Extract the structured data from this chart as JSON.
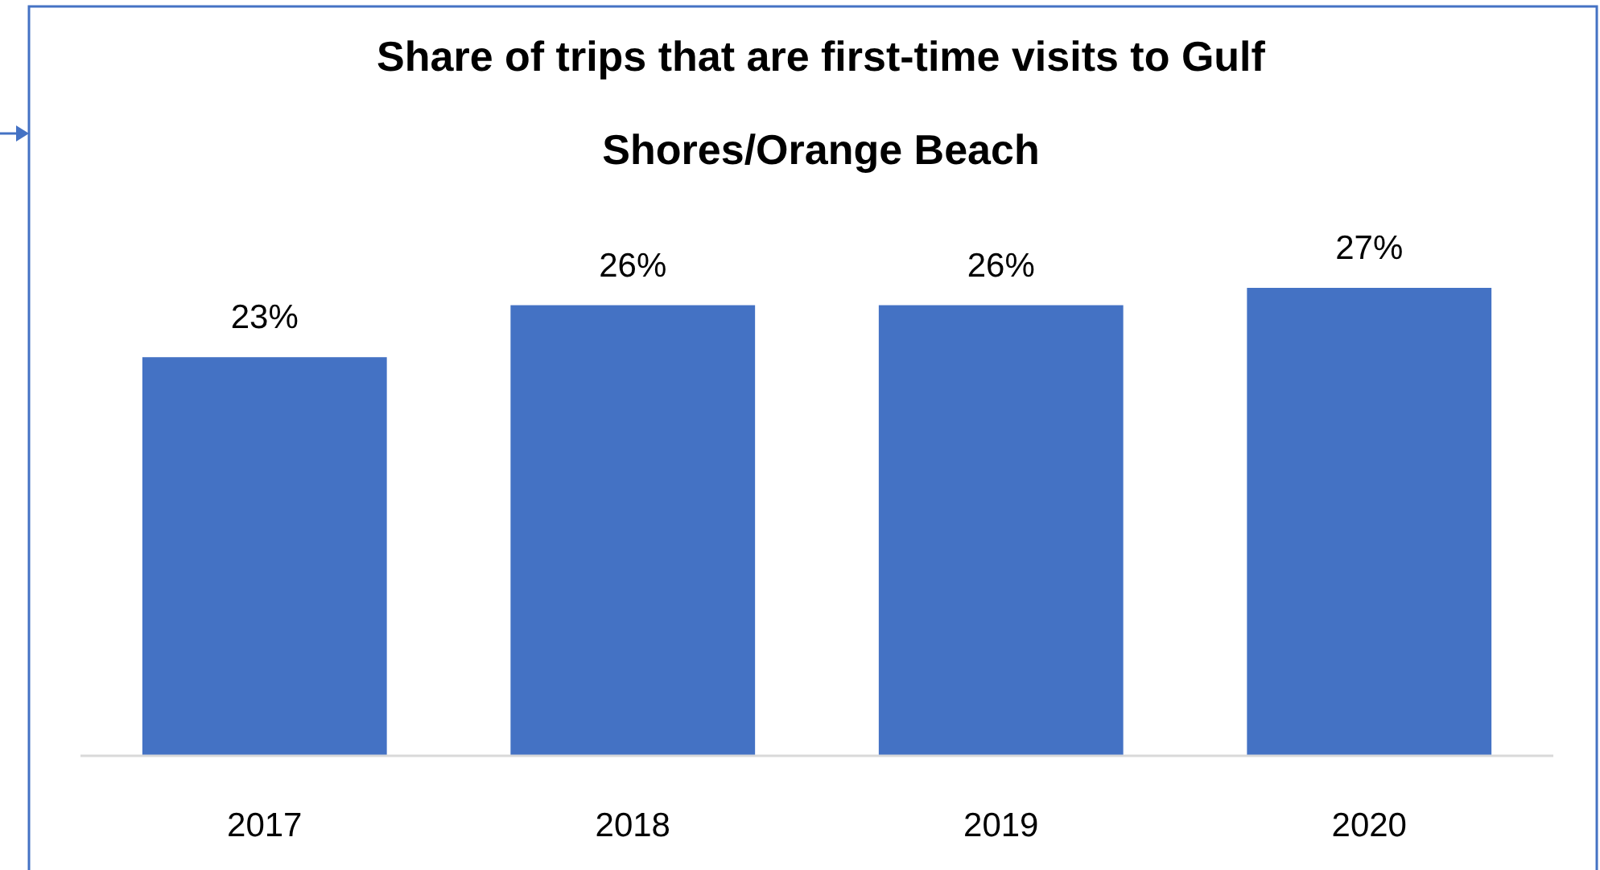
{
  "chart_data": {
    "type": "bar",
    "title": "Share of trips that are first-time visits to Gulf Shores/Orange Beach",
    "categories": [
      "2017",
      "2018",
      "2019",
      "2020"
    ],
    "values": [
      23,
      26,
      26,
      27
    ],
    "value_labels": [
      "23%",
      "26%",
      "26%",
      "27%"
    ],
    "color": "#4472c4"
  }
}
